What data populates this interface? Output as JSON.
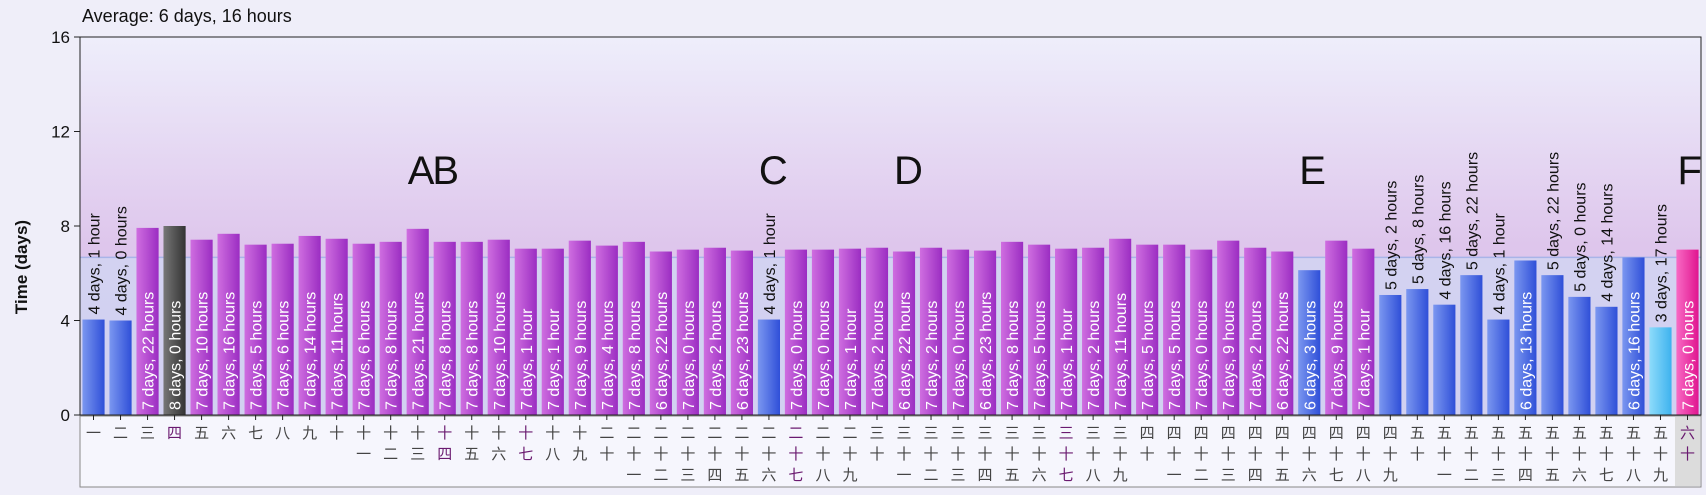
{
  "header": {
    "average_text": "Average: 6 days, 16 hours"
  },
  "colors": {
    "purple": "#b33dce",
    "blue": "#4a6ee8",
    "dark": "#555555",
    "light_blue": "#5cc8f5",
    "pink": "#ef2fa9",
    "average_line": "#a8b4e8"
  },
  "chart_data": {
    "type": "bar",
    "title": "",
    "xlabel": "",
    "ylabel": "Time (days)",
    "ylim": [
      0,
      16
    ],
    "yticks": [
      "0",
      "4",
      "8",
      "12",
      "16"
    ],
    "average": 6.67,
    "grid": false,
    "categories": [
      "一",
      "二",
      "三",
      "四",
      "五",
      "六",
      "七",
      "八",
      "九",
      "十",
      "十一",
      "十二",
      "十三",
      "十四",
      "十五",
      "十六",
      "十七",
      "十八",
      "十九",
      "二十",
      "二十一",
      "二十二",
      "二十三",
      "二十四",
      "二十五",
      "二十六",
      "二十七",
      "二十八",
      "二十九",
      "三十",
      "三十一",
      "三十二",
      "三十三",
      "三十四",
      "三十五",
      "三十六",
      "三十七",
      "三十八",
      "三十九",
      "四十",
      "四十一",
      "四十二",
      "四十三",
      "四十四",
      "四十五",
      "四十六",
      "四十七",
      "四十八",
      "四十九",
      "五十",
      "五十一",
      "五十二",
      "五十三",
      "五十四",
      "五十五",
      "五十六",
      "五十七",
      "五十八",
      "五十九",
      "六十"
    ],
    "values": [
      4.04,
      4.0,
      7.92,
      8.0,
      7.42,
      7.67,
      7.21,
      7.25,
      7.58,
      7.46,
      7.25,
      7.33,
      7.88,
      7.33,
      7.33,
      7.42,
      7.04,
      7.04,
      7.38,
      7.17,
      7.33,
      6.92,
      7.0,
      7.08,
      6.96,
      4.04,
      7.0,
      7.0,
      7.04,
      7.08,
      6.92,
      7.08,
      7.0,
      6.96,
      7.33,
      7.21,
      7.04,
      7.08,
      7.46,
      7.21,
      7.21,
      7.0,
      7.38,
      7.08,
      6.92,
      6.13,
      7.38,
      7.04,
      5.08,
      5.33,
      4.67,
      5.92,
      4.04,
      6.54,
      5.92,
      5.0,
      4.58,
      6.67,
      3.71,
      7.0
    ],
    "value_labels": [
      "4 days, 1 hour",
      "4 days, 0 hours",
      "7 days, 22 hours",
      "8 days, 0 hours",
      "7 days, 10 hours",
      "7 days, 16 hours",
      "7 days, 5 hours",
      "7 days, 6 hours",
      "7 days, 14 hours",
      "7 days, 11 hours",
      "7 days, 6 hours",
      "7 days, 8 hours",
      "7 days, 21 hours",
      "7 days, 8 hours",
      "7 days, 8 hours",
      "7 days, 10 hours",
      "7 days, 1 hour",
      "7 days, 1 hour",
      "7 days, 9 hours",
      "7 days, 4 hours",
      "7 days, 8 hours",
      "6 days, 22 hours",
      "7 days, 0 hours",
      "7 days, 2 hours",
      "6 days, 23 hours",
      "4 days, 1 hour",
      "7 days, 0 hours",
      "7 days, 0 hours",
      "7 days, 1 hour",
      "7 days, 2 hours",
      "6 days, 22 hours",
      "7 days, 2 hours",
      "7 days, 0 hours",
      "6 days, 23 hours",
      "7 days, 8 hours",
      "7 days, 5 hours",
      "7 days, 1 hour",
      "7 days, 2 hours",
      "7 days, 11 hours",
      "7 days, 5 hours",
      "7 days, 5 hours",
      "7 days, 0 hours",
      "7 days, 9 hours",
      "7 days, 2 hours",
      "6 days, 22 hours",
      "6 days, 3 hours",
      "7 days, 9 hours",
      "7 days, 1 hour",
      "5 days, 2 hours",
      "5 days, 8 hours",
      "4 days, 16 hours",
      "5 days, 22 hours",
      "4 days, 1 hour",
      "6 days, 13 hours",
      "5 days, 22 hours",
      "5 days, 0 hours",
      "4 days, 14 hours",
      "6 days, 16 hours",
      "3 days, 17 hours",
      "7 days, 0 hours"
    ],
    "bar_colors": [
      "blue",
      "blue",
      "purple",
      "dark",
      "purple",
      "purple",
      "purple",
      "purple",
      "purple",
      "purple",
      "purple",
      "purple",
      "purple",
      "purple",
      "purple",
      "purple",
      "purple",
      "purple",
      "purple",
      "purple",
      "purple",
      "purple",
      "purple",
      "purple",
      "purple",
      "blue",
      "purple",
      "purple",
      "purple",
      "purple",
      "purple",
      "purple",
      "purple",
      "purple",
      "purple",
      "purple",
      "purple",
      "purple",
      "purple",
      "purple",
      "purple",
      "purple",
      "purple",
      "purple",
      "purple",
      "blue",
      "purple",
      "purple",
      "blue",
      "blue",
      "blue",
      "blue",
      "blue",
      "blue",
      "blue",
      "blue",
      "blue",
      "blue",
      "light_blue",
      "pink"
    ],
    "annotations": [
      {
        "text": "AB",
        "index": 12
      },
      {
        "text": "C",
        "index": 25
      },
      {
        "text": "D",
        "index": 30
      },
      {
        "text": "E",
        "index": 45
      },
      {
        "text": "F",
        "index": 59
      }
    ],
    "highlighted_categories": [
      3,
      13,
      16,
      26,
      36,
      59
    ]
  }
}
